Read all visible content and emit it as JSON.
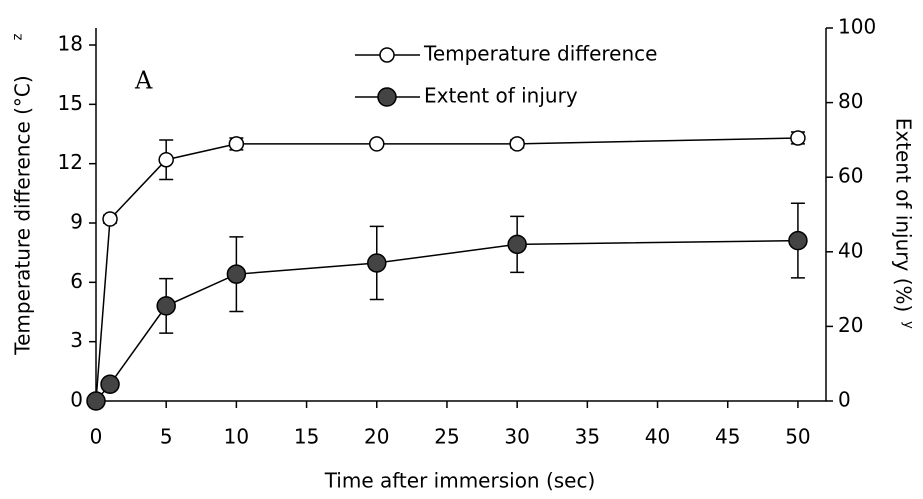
{
  "chart_data": {
    "type": "line",
    "annotation": "A",
    "x_label": "Time after immersion (sec)",
    "y_label": "Temperature difference (°C)",
    "y_label_superscript": "z",
    "y2_label": "Extent of injury (%)",
    "y2_label_superscript": "y",
    "x": [
      0,
      1,
      5,
      10,
      20,
      30,
      50
    ],
    "series": [
      {
        "name": "Temperature difference",
        "color": "#000000",
        "marker": "open-circle",
        "values": [
          0,
          9.2,
          12.2,
          13.0,
          13.0,
          13.0,
          13.3
        ],
        "errors": [
          0,
          0.2,
          1.0,
          0.3,
          0.1,
          0.2,
          0.3
        ]
      },
      {
        "name": "Extent of injury",
        "color": "#444444",
        "marker": "filled-circle",
        "axis": "y2",
        "values": [
          0,
          4.5,
          25.5,
          34,
          37,
          42,
          43
        ],
        "errors": [
          0,
          0.5,
          7.3,
          10,
          9.8,
          7.5,
          10
        ]
      }
    ],
    "xlim": [
      0,
      52
    ],
    "xticks": [
      0,
      5,
      10,
      15,
      20,
      25,
      30,
      35,
      40,
      45,
      50
    ],
    "ylim": [
      0,
      18.86
    ],
    "yticks": [
      0,
      3,
      6,
      9,
      12,
      15,
      18
    ],
    "y2lim": [
      0,
      100
    ],
    "y2ticks": [
      0,
      20,
      40,
      60,
      80,
      100
    ],
    "legend": "top"
  }
}
